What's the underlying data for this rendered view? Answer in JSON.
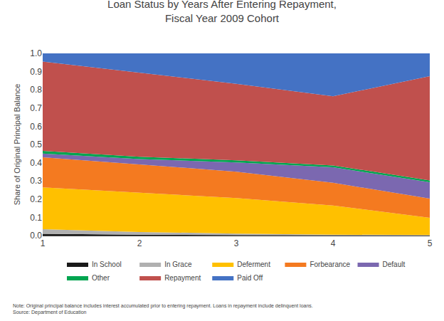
{
  "chart_data": {
    "type": "area",
    "stacked": true,
    "title": "Loan Status by Years After Entering Repayment,\nFiscal Year 2009 Cohort",
    "y_label": "Share of Original Principal Balance",
    "annotations": [
      "Note: Original principal balance includes interest accumulated prior to entering repayment. Loans in repayment include delinquent loans.\nSource: Department of Education"
    ],
    "x": [
      1,
      2,
      3,
      4,
      5
    ],
    "series": [
      {
        "name": "In School",
        "color": "#1a1a1a",
        "values": [
          0.01,
          0.005,
          0.003,
          0.001,
          0.001
        ]
      },
      {
        "name": "In Grace",
        "color": "#b0b0b0",
        "values": [
          0.025,
          0.015,
          0.008,
          0.004,
          0.002
        ]
      },
      {
        "name": "Deferment",
        "color": "#ffc000",
        "values": [
          0.23,
          0.215,
          0.195,
          0.16,
          0.095
        ]
      },
      {
        "name": "Forbearance",
        "color": "#f47a20",
        "values": [
          0.165,
          0.155,
          0.145,
          0.125,
          0.105
        ]
      },
      {
        "name": "Default",
        "color": "#7b68b0",
        "values": [
          0.02,
          0.03,
          0.05,
          0.085,
          0.09
        ]
      },
      {
        "name": "Other",
        "color": "#00a550",
        "values": [
          0.015,
          0.013,
          0.012,
          0.01,
          0.01
        ]
      },
      {
        "name": "Repayment",
        "color": "#c0504d",
        "values": [
          0.49,
          0.462,
          0.42,
          0.38,
          0.572
        ]
      },
      {
        "name": "Paid Off",
        "color": "#4472c4",
        "values": [
          0.045,
          0.105,
          0.167,
          0.235,
          0.125
        ]
      }
    ],
    "xlim": [
      1,
      5
    ],
    "xticks": [
      1,
      2,
      3,
      4,
      5
    ],
    "ylim": [
      0,
      1
    ],
    "yticks": [
      {
        "value": 0,
        "label": "0.0"
      },
      {
        "value": 0.1,
        "label": "0.1"
      },
      {
        "value": 0.2,
        "label": "0.2"
      },
      {
        "value": 0.3,
        "label": "0.3"
      },
      {
        "value": 0.4,
        "label": "0.4"
      },
      {
        "value": 0.5,
        "label": "0.5"
      },
      {
        "value": 0.6,
        "label": "0.6"
      },
      {
        "value": 0.7,
        "label": "0.7"
      },
      {
        "value": 0.8,
        "label": "0.8"
      },
      {
        "value": 0.9,
        "label": "0.9"
      },
      {
        "value": 1,
        "label": "1.0"
      }
    ],
    "grid": false,
    "legend": "bottom"
  }
}
